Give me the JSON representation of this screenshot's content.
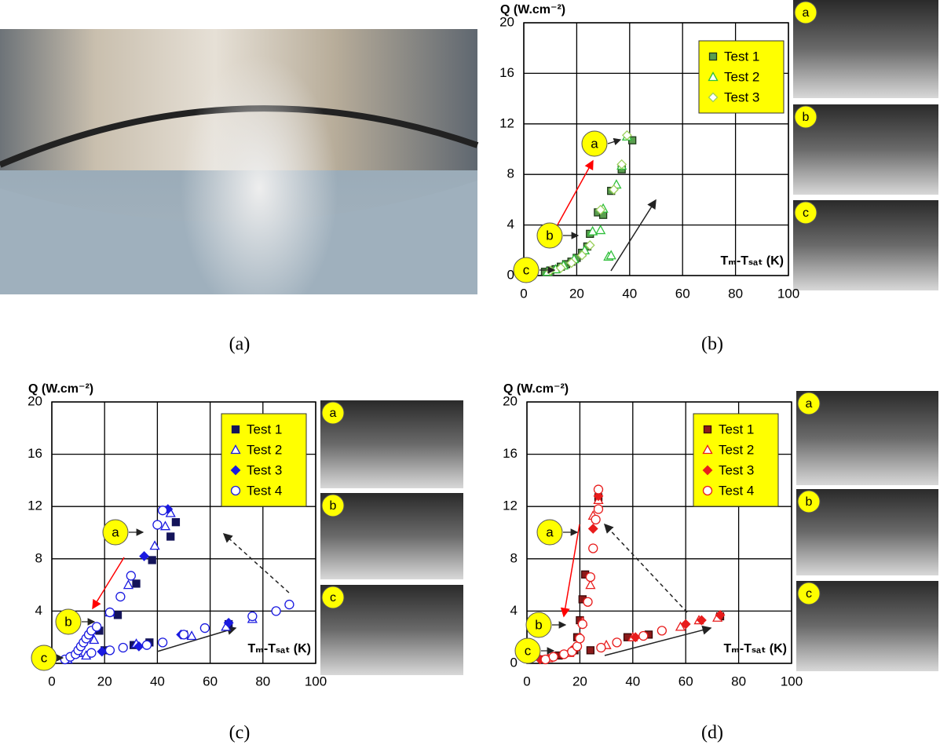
{
  "captions": [
    "(a)",
    "(b)",
    "(c)",
    "(d)"
  ],
  "chart_data": [
    {
      "type": "scatter",
      "ylabel": "Q (W.cm⁻²)",
      "xlabel": "Tₘ-Tₛₐₜ (K)",
      "xlim": [
        0,
        100
      ],
      "ylim": [
        0,
        20
      ],
      "xticks": [
        0,
        20,
        40,
        60,
        80,
        100
      ],
      "yticks": [
        0,
        4,
        8,
        12,
        16,
        20
      ],
      "grid": true,
      "legend": "upper right",
      "annotations": [
        "a",
        "b",
        "c"
      ],
      "photo_labels": [
        "a",
        "b",
        "c"
      ],
      "series": [
        {
          "name": "Test 1",
          "color": "#5a9e4f",
          "edgecolor": "#1f3a1a",
          "marker": "square",
          "filled": true,
          "x": [
            8,
            10,
            12,
            14,
            16,
            18,
            20,
            22,
            24,
            25,
            28,
            30,
            33,
            37,
            41
          ],
          "values": [
            0.3,
            0.4,
            0.5,
            0.7,
            0.9,
            1.1,
            1.4,
            1.8,
            2.3,
            3.3,
            5.0,
            4.8,
            6.7,
            8.4,
            10.7
          ]
        },
        {
          "name": "Test 2",
          "color": "#2fbf3a",
          "edgecolor": "#2fbf3a",
          "marker": "triangle",
          "filled": false,
          "x": [
            9,
            12,
            15,
            19,
            23,
            26,
            29,
            30,
            32,
            33,
            35,
            37,
            39
          ],
          "values": [
            0.3,
            0.5,
            0.8,
            1.3,
            2.0,
            3.5,
            3.6,
            5.3,
            1.5,
            1.6,
            7.2,
            8.7,
            11.0
          ]
        },
        {
          "name": "Test 3",
          "color": "#9bd05a",
          "edgecolor": "#9bd05a",
          "marker": "diamond",
          "filled": false,
          "x": [
            10,
            14,
            18,
            22,
            25,
            29,
            34,
            37,
            39
          ],
          "values": [
            0.4,
            0.6,
            1.0,
            1.6,
            2.4,
            5.2,
            6.8,
            8.8,
            11.1
          ]
        }
      ]
    },
    {
      "type": "scatter",
      "ylabel": "Q (W.cm⁻²)",
      "xlabel": "Tₘ-Tₛₐₜ (K)",
      "xlim": [
        0,
        100
      ],
      "ylim": [
        0,
        20
      ],
      "xticks": [
        0,
        20,
        40,
        60,
        80,
        100
      ],
      "yticks": [
        0,
        4,
        8,
        12,
        16,
        20
      ],
      "grid": true,
      "legend": "upper right",
      "annotations": [
        "a",
        "b",
        "c"
      ],
      "photo_labels": [
        "a",
        "b",
        "c"
      ],
      "series": [
        {
          "name": "Test 1",
          "color": "#14145a",
          "edgecolor": "#14145a",
          "marker": "square",
          "filled": true,
          "x": [
            18,
            25,
            32,
            38,
            45,
            47,
            20,
            31,
            37,
            50,
            67
          ],
          "values": [
            2.5,
            3.7,
            6.1,
            7.9,
            9.7,
            10.8,
            1.0,
            1.4,
            1.6,
            2.2,
            3.0
          ]
        },
        {
          "name": "Test 2",
          "color": "#1a1ae0",
          "edgecolor": "#1a1ae0",
          "marker": "triangle",
          "filled": false,
          "x": [
            6,
            10,
            16,
            22,
            29,
            39,
            43,
            45,
            13,
            32,
            53,
            66,
            76
          ],
          "values": [
            0.3,
            0.8,
            1.8,
            3.9,
            6.0,
            9.0,
            10.5,
            11.5,
            0.6,
            1.5,
            2.1,
            2.8,
            3.4
          ]
        },
        {
          "name": "Test 3",
          "color": "#1a1ae0",
          "edgecolor": "#1a1ae0",
          "marker": "diamond",
          "filled": true,
          "x": [
            19,
            35,
            44,
            33,
            49,
            67
          ],
          "values": [
            0.9,
            8.2,
            11.8,
            1.3,
            2.2,
            3.1
          ]
        },
        {
          "name": "Test 4",
          "color": "#1a1ae0",
          "edgecolor": "#1a1ae0",
          "marker": "circle",
          "filled": false,
          "x": [
            5,
            7,
            9,
            10,
            11,
            12,
            13,
            14,
            15,
            17,
            22,
            26,
            30,
            40,
            42,
            15,
            22,
            27,
            36,
            42,
            50,
            58,
            76,
            85,
            90
          ],
          "values": [
            0.3,
            0.5,
            0.7,
            1.0,
            1.3,
            1.6,
            1.9,
            2.2,
            2.5,
            2.8,
            3.9,
            5.1,
            6.7,
            10.6,
            11.7,
            0.8,
            1.0,
            1.2,
            1.4,
            1.6,
            2.2,
            2.7,
            3.6,
            4.0,
            4.5
          ]
        }
      ]
    },
    {
      "type": "scatter",
      "ylabel": "Q (W.cm⁻²)",
      "xlabel": "Tₘ-Tₛₐₜ (K)",
      "xlim": [
        0,
        100
      ],
      "ylim": [
        0,
        20
      ],
      "xticks": [
        0,
        20,
        40,
        60,
        80,
        100
      ],
      "yticks": [
        0,
        4,
        8,
        12,
        16,
        20
      ],
      "grid": true,
      "legend": "upper right",
      "annotations": [
        "a",
        "b",
        "c"
      ],
      "photo_labels": [
        "a",
        "b",
        "c"
      ],
      "series": [
        {
          "name": "Test 1",
          "color": "#8b1a1a",
          "edgecolor": "#3a0a0a",
          "marker": "square",
          "filled": true,
          "x": [
            6,
            12,
            18,
            19,
            20,
            21,
            22,
            24,
            27,
            46,
            73,
            38
          ],
          "values": [
            0.3,
            0.6,
            1.0,
            2.0,
            3.3,
            4.9,
            6.8,
            1.0,
            12.7,
            2.2,
            3.6,
            2.0
          ]
        },
        {
          "name": "Test 2",
          "color": "#e81c1c",
          "edgecolor": "#e81c1c",
          "marker": "triangle",
          "filled": false,
          "x": [
            8,
            16,
            21,
            24,
            25,
            27,
            30,
            40,
            58,
            65,
            72
          ],
          "values": [
            0.4,
            0.8,
            3.2,
            6.0,
            11.3,
            12.5,
            1.4,
            2.0,
            2.8,
            3.3,
            3.5
          ]
        },
        {
          "name": "Test 3",
          "color": "#e81c1c",
          "edgecolor": "#e81c1c",
          "marker": "diamond",
          "filled": true,
          "x": [
            5,
            17,
            20,
            25,
            27,
            41,
            60,
            66,
            73
          ],
          "values": [
            0.3,
            1.0,
            2.0,
            10.3,
            12.8,
            2.0,
            3.0,
            3.3,
            3.7
          ]
        },
        {
          "name": "Test 4",
          "color": "#e81c1c",
          "edgecolor": "#e81c1c",
          "marker": "circle",
          "filled": false,
          "x": [
            7,
            10,
            14,
            17,
            19,
            20,
            21,
            23,
            24,
            25,
            26,
            27,
            27,
            28,
            34,
            44,
            51
          ],
          "values": [
            0.3,
            0.5,
            0.7,
            0.9,
            1.3,
            1.9,
            3.0,
            4.7,
            6.6,
            8.8,
            11.0,
            11.8,
            13.3,
            1.2,
            1.6,
            2.1,
            2.5
          ]
        }
      ]
    }
  ]
}
